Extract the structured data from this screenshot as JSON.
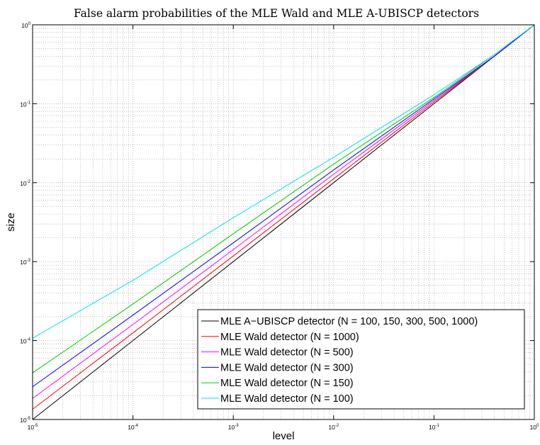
{
  "chart_data": {
    "type": "line",
    "title": "False alarm probabilities of the MLE Wald and MLE A-UBISCP detectors",
    "xlabel": "level",
    "ylabel": "size",
    "xscale": "log",
    "yscale": "log",
    "xlim": [
      1e-05,
      1
    ],
    "ylim": [
      1e-05,
      1
    ],
    "xticks": [
      "10^-5",
      "10^-4",
      "10^-3",
      "10^-2",
      "10^-1",
      "10^0"
    ],
    "yticks": [
      "10^-5",
      "10^-4",
      "10^-3",
      "10^-2",
      "10^-1",
      "10^0"
    ],
    "grid": true,
    "legend_position": "bottom-right",
    "series": [
      {
        "name": "MLE A−UBISCP detector (N = 100, 150, 300, 500, 1000)",
        "color": "#000000",
        "x": [
          1e-05,
          0.0001,
          0.001,
          0.01,
          0.1,
          0.4,
          1
        ],
        "y": [
          1e-05,
          0.0001,
          0.001,
          0.01,
          0.1,
          0.4,
          1
        ]
      },
      {
        "name": "MLE Wald detector (N = 1000)",
        "color": "#ff0000",
        "x": [
          1e-05,
          0.0001,
          0.001,
          0.01,
          0.1,
          0.4,
          1
        ],
        "y": [
          1.35e-05,
          0.000125,
          0.00118,
          0.0112,
          0.105,
          0.4,
          1
        ]
      },
      {
        "name": "MLE Wald detector (N = 500)",
        "color": "#ff00ff",
        "x": [
          1e-05,
          0.0001,
          0.001,
          0.01,
          0.1,
          0.4,
          1
        ],
        "y": [
          1.85e-05,
          0.00016,
          0.00142,
          0.0128,
          0.11,
          0.4,
          1
        ]
      },
      {
        "name": "MLE Wald detector (N = 300)",
        "color": "#0000ff",
        "x": [
          1e-05,
          0.0001,
          0.001,
          0.01,
          0.1,
          0.4,
          1
        ],
        "y": [
          2.6e-05,
          0.00021,
          0.00173,
          0.0145,
          0.115,
          0.4,
          1
        ]
      },
      {
        "name": "MLE Wald detector (N = 150)",
        "color": "#00cc00",
        "x": [
          1e-05,
          0.0001,
          0.001,
          0.01,
          0.1,
          0.4,
          1
        ],
        "y": [
          3.9e-05,
          0.00029,
          0.00225,
          0.0172,
          0.12,
          0.42,
          1
        ]
      },
      {
        "name": "MLE Wald detector (N = 100)",
        "color": "#00e5e5",
        "x": [
          1e-05,
          0.0001,
          0.001,
          0.01,
          0.1,
          0.4,
          1
        ],
        "y": [
          0.000107,
          0.00058,
          0.0036,
          0.021,
          0.13,
          0.42,
          1
        ]
      }
    ]
  }
}
